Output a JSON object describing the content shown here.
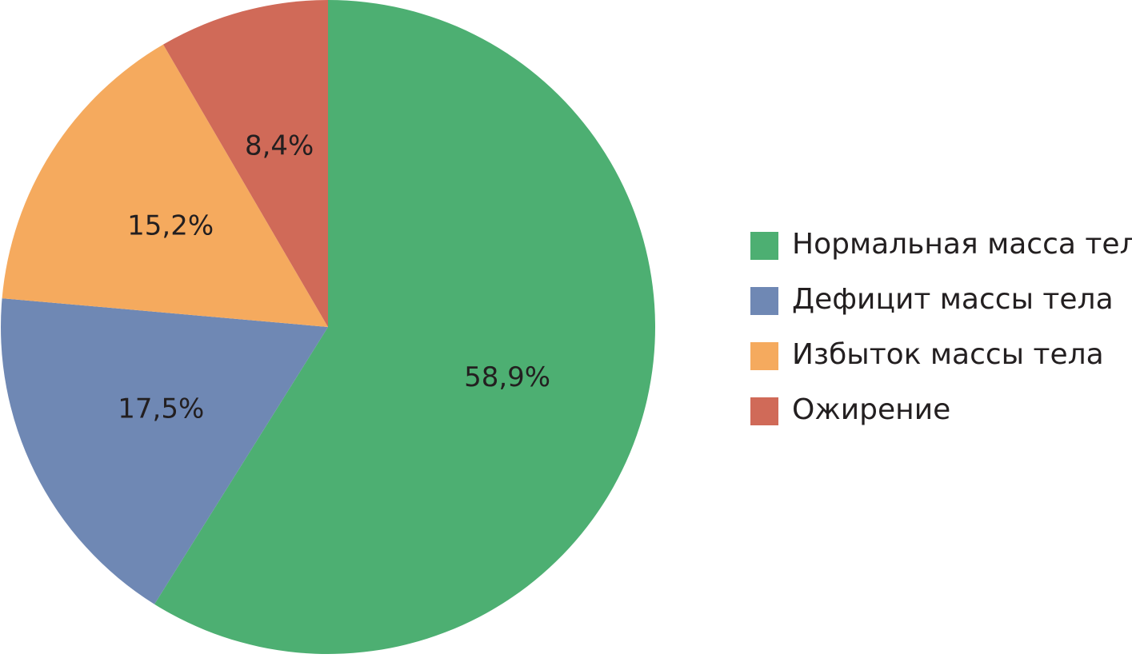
{
  "chart_data": {
    "type": "pie",
    "categories": [
      "Нормальная масса тела",
      "Дефицит массы тела",
      "Избыток массы тела",
      "Ожирение"
    ],
    "values": [
      58.9,
      17.5,
      15.2,
      8.4
    ],
    "value_labels": [
      "58,9%",
      "17,5%",
      "15,2%",
      "8,4%"
    ],
    "colors": [
      "#4daf72",
      "#6f88b4",
      "#f5aa5e",
      "#d06a58"
    ],
    "legend": "right"
  }
}
